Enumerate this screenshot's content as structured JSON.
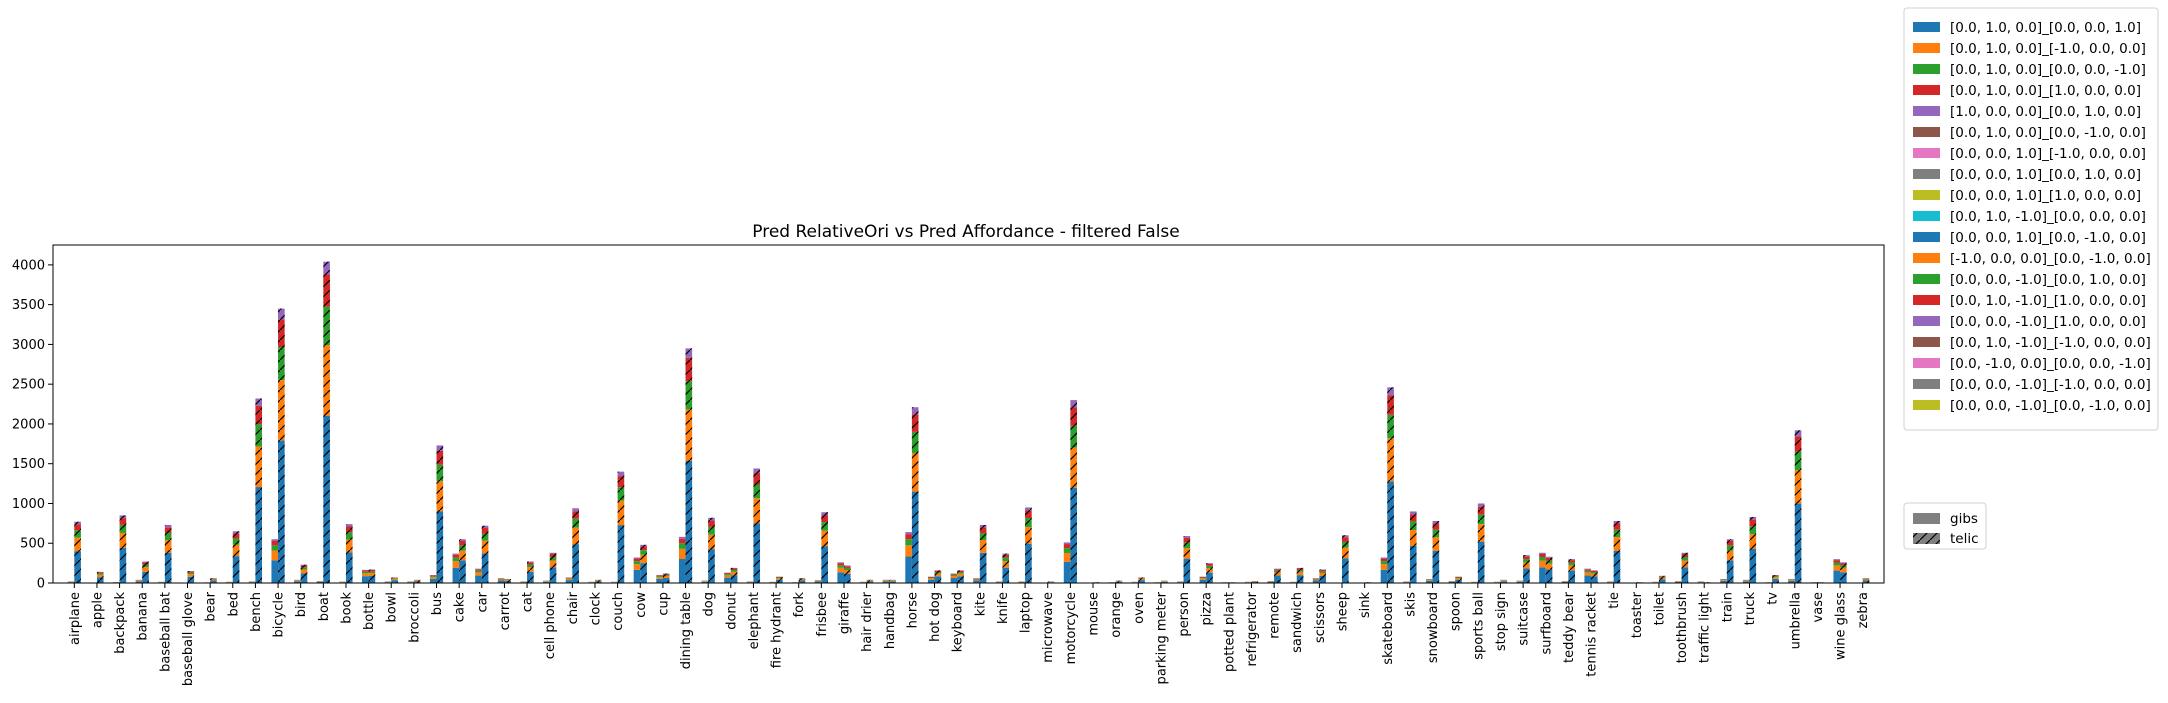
{
  "chart_data": {
    "type": "bar",
    "title": "Pred RelativeOri vs Pred Affordance - filtered False",
    "xlabel": "",
    "ylabel": "",
    "ylim": [
      0,
      4250
    ],
    "yticks": [
      0,
      500,
      1000,
      1500,
      2000,
      2500,
      3000,
      3500,
      4000
    ],
    "grid": false,
    "legend_placement": "outside-right",
    "categories": [
      "airplane",
      "apple",
      "backpack",
      "banana",
      "baseball bat",
      "baseball glove",
      "bear",
      "bed",
      "bench",
      "bicycle",
      "bird",
      "boat",
      "book",
      "bottle",
      "bowl",
      "broccoli",
      "bus",
      "cake",
      "car",
      "carrot",
      "cat",
      "cell phone",
      "chair",
      "clock",
      "couch",
      "cow",
      "cup",
      "dining table",
      "dog",
      "donut",
      "elephant",
      "fire hydrant",
      "fork",
      "frisbee",
      "giraffe",
      "hair drier",
      "handbag",
      "horse",
      "hot dog",
      "keyboard",
      "kite",
      "knife",
      "laptop",
      "microwave",
      "motorcycle",
      "mouse",
      "orange",
      "oven",
      "parking meter",
      "person",
      "pizza",
      "potted plant",
      "refrigerator",
      "remote",
      "sandwich",
      "scissors",
      "sheep",
      "sink",
      "skateboard",
      "skis",
      "snowboard",
      "spoon",
      "sports ball",
      "stop sign",
      "suitcase",
      "surfboard",
      "teddy bear",
      "tennis racket",
      "tie",
      "toaster",
      "toilet",
      "toothbrush",
      "traffic light",
      "train",
      "truck",
      "tv",
      "umbrella",
      "vase",
      "wine glass",
      "zebra"
    ],
    "gibs_totals": [
      20,
      5,
      12,
      40,
      15,
      3,
      8,
      15,
      20,
      550,
      40,
      25,
      18,
      165,
      20,
      20,
      100,
      370,
      180,
      60,
      20,
      30,
      70,
      15,
      15,
      320,
      100,
      580,
      30,
      130,
      20,
      15,
      10,
      35,
      260,
      15,
      40,
      640,
      80,
      120,
      60,
      20,
      20,
      5,
      510,
      5,
      10,
      15,
      10,
      20,
      80,
      10,
      15,
      25,
      15,
      60,
      5,
      5,
      320,
      20,
      50,
      25,
      15,
      15,
      30,
      380,
      25,
      180,
      20,
      5,
      15,
      25,
      20,
      50,
      40,
      10,
      50,
      10,
      300,
      5
    ],
    "telic_totals": [
      770,
      140,
      850,
      270,
      730,
      150,
      60,
      650,
      2320,
      3450,
      230,
      4040,
      740,
      170,
      70,
      40,
      1730,
      550,
      720,
      50,
      270,
      380,
      940,
      40,
      1400,
      480,
      120,
      2950,
      820,
      190,
      1440,
      80,
      60,
      890,
      220,
      40,
      40,
      2210,
      160,
      160,
      730,
      370,
      950,
      20,
      2300,
      10,
      30,
      70,
      30,
      590,
      250,
      10,
      25,
      180,
      190,
      170,
      600,
      10,
      2460,
      900,
      780,
      80,
      1000,
      40,
      350,
      330,
      300,
      160,
      780,
      10,
      90,
      380,
      10,
      550,
      830,
      100,
      1920,
      10,
      260,
      60
    ],
    "series": [
      {
        "name": "[0.0, 1.0, 0.0]_[0.0, 0.0, 1.0]",
        "color": "#1f77b4"
      },
      {
        "name": "[0.0, 1.0, 0.0]_[-1.0, 0.0, 0.0]",
        "color": "#ff7f0e"
      },
      {
        "name": "[0.0, 1.0, 0.0]_[0.0, 0.0, -1.0]",
        "color": "#2ca02c"
      },
      {
        "name": "[0.0, 1.0, 0.0]_[1.0, 0.0, 0.0]",
        "color": "#d62728"
      },
      {
        "name": "[1.0, 0.0, 0.0]_[0.0, 1.0, 0.0]",
        "color": "#9467bd"
      },
      {
        "name": "[0.0, 1.0, 0.0]_[0.0, -1.0, 0.0]",
        "color": "#8c564b"
      },
      {
        "name": "[0.0, 0.0, 1.0]_[-1.0, 0.0, 0.0]",
        "color": "#e377c2"
      },
      {
        "name": "[0.0, 0.0, 1.0]_[0.0, 1.0, 0.0]",
        "color": "#7f7f7f"
      },
      {
        "name": "[0.0, 0.0, 1.0]_[1.0, 0.0, 0.0]",
        "color": "#bcbd22"
      },
      {
        "name": "[0.0, 1.0, -1.0]_[0.0, 0.0, 0.0]",
        "color": "#17becf"
      },
      {
        "name": "[0.0, 0.0, 1.0]_[0.0, -1.0, 0.0]",
        "color": "#1f77b4"
      },
      {
        "name": "[-1.0, 0.0, 0.0]_[0.0, -1.0, 0.0]",
        "color": "#ff7f0e"
      },
      {
        "name": "[0.0, 0.0, -1.0]_[0.0, 1.0, 0.0]",
        "color": "#2ca02c"
      },
      {
        "name": "[0.0, 1.0, -1.0]_[1.0, 0.0, 0.0]",
        "color": "#d62728"
      },
      {
        "name": "[0.0, 0.0, -1.0]_[1.0, 0.0, 0.0]",
        "color": "#9467bd"
      },
      {
        "name": "[0.0, 1.0, -1.0]_[-1.0, 0.0, 0.0]",
        "color": "#8c564b"
      },
      {
        "name": "[0.0, -1.0, 0.0]_[0.0, 0.0, -1.0]",
        "color": "#e377c2"
      },
      {
        "name": "[0.0, 0.0, -1.0]_[-1.0, 0.0, 0.0]",
        "color": "#7f7f7f"
      },
      {
        "name": "[0.0, 0.0, -1.0]_[0.0, -1.0, 0.0]",
        "color": "#bcbd22"
      }
    ],
    "stack_fractions": [
      0.52,
      0.22,
      0.12,
      0.1,
      0.04
    ],
    "hatch_legend": [
      {
        "name": "gibs",
        "hatch": "none"
      },
      {
        "name": "telic",
        "hatch": "/"
      }
    ]
  }
}
